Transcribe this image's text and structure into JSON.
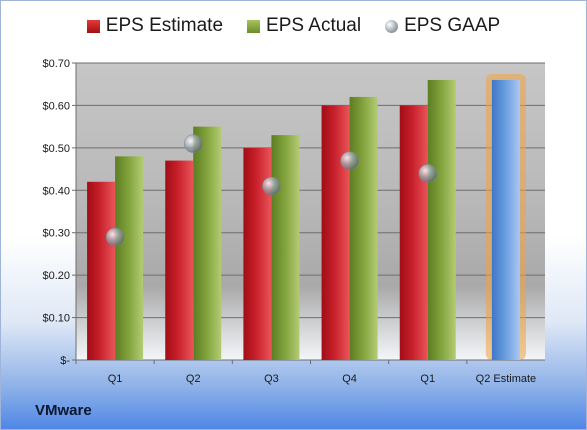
{
  "company": "VMware",
  "legend": {
    "estimate": "EPS Estimate",
    "actual": "EPS Actual",
    "gaap": "EPS GAAP"
  },
  "colors": {
    "estimate": "#c8202a",
    "actual": "#7fa03a",
    "gaap": "#9aa3ad",
    "future_estimate": "#6b9fe0",
    "future_glow": "#f2a33c"
  },
  "chart_data": {
    "type": "bar",
    "categories": [
      "Q1",
      "Q2",
      "Q3",
      "Q4",
      "Q1",
      "Q2 Estimate"
    ],
    "series": [
      {
        "name": "EPS Estimate",
        "values": [
          0.42,
          0.47,
          0.5,
          0.6,
          0.6,
          null
        ]
      },
      {
        "name": "EPS Actual",
        "values": [
          0.48,
          0.55,
          0.53,
          0.62,
          0.66,
          null
        ]
      },
      {
        "name": "EPS GAAP",
        "values": [
          0.29,
          0.51,
          0.41,
          0.47,
          0.44,
          null
        ]
      }
    ],
    "future_estimate": {
      "category": "Q2 Estimate",
      "value": 0.66
    },
    "ylim": [
      0,
      0.7
    ],
    "yticks": [
      0,
      0.1,
      0.2,
      0.3,
      0.4,
      0.5,
      0.6,
      0.7
    ],
    "ytick_labels": [
      "$-",
      "$0.10",
      "$0.20",
      "$0.30",
      "$0.40",
      "$0.50",
      "$0.60",
      "$0.70"
    ],
    "grid": true,
    "legend_position": "top"
  }
}
